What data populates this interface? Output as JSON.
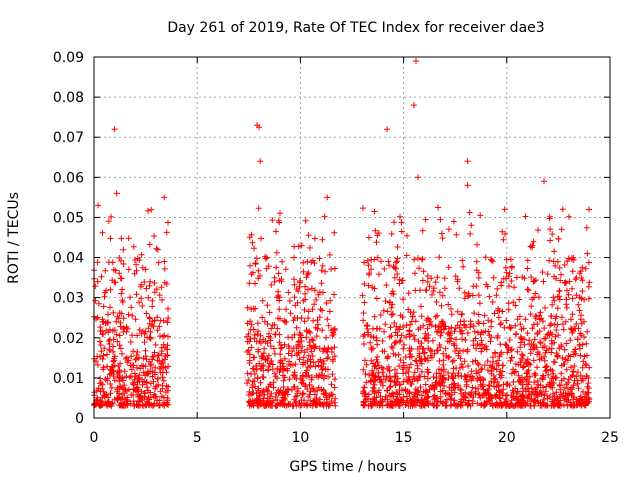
{
  "chart_data": {
    "type": "scatter",
    "title": "Day 261 of 2019, Rate Of TEC Index for receiver dae3",
    "xlabel": "GPS time / hours",
    "ylabel": "ROTI / TECUs",
    "xlim": [
      0,
      25
    ],
    "ylim": [
      0,
      0.09
    ],
    "xticks": [
      0,
      5,
      10,
      15,
      20,
      25
    ],
    "xtick_labels": [
      "0",
      "5",
      "10",
      "15",
      "20",
      "25"
    ],
    "yticks": [
      0,
      0.01,
      0.02,
      0.03,
      0.04,
      0.05,
      0.06,
      0.07,
      0.08,
      0.09
    ],
    "ytick_labels": [
      "0",
      "0.01",
      "0.02",
      "0.03",
      "0.04",
      "0.05",
      "0.06",
      "0.07",
      "0.08",
      "0.09"
    ],
    "grid": true,
    "marker": "+",
    "color": "#ff0000",
    "observed_hour_ranges": [
      [
        0,
        3.6
      ],
      [
        7.4,
        11.7
      ],
      [
        13.0,
        24.0
      ]
    ],
    "dense_value_range": [
      0.003,
      0.025
    ],
    "notable_points": [
      {
        "x": 1.0,
        "y": 0.072
      },
      {
        "x": 1.1,
        "y": 0.056
      },
      {
        "x": 0.2,
        "y": 0.053
      },
      {
        "x": 3.4,
        "y": 0.055
      },
      {
        "x": 7.9,
        "y": 0.073
      },
      {
        "x": 8.0,
        "y": 0.0725
      },
      {
        "x": 8.05,
        "y": 0.064
      },
      {
        "x": 11.3,
        "y": 0.055
      },
      {
        "x": 14.2,
        "y": 0.072
      },
      {
        "x": 15.6,
        "y": 0.089
      },
      {
        "x": 15.5,
        "y": 0.078
      },
      {
        "x": 15.7,
        "y": 0.06
      },
      {
        "x": 18.1,
        "y": 0.064
      },
      {
        "x": 18.1,
        "y": 0.058
      },
      {
        "x": 21.8,
        "y": 0.059
      },
      {
        "x": 19.9,
        "y": 0.052
      },
      {
        "x": 23.9,
        "y": 0.041
      }
    ]
  }
}
